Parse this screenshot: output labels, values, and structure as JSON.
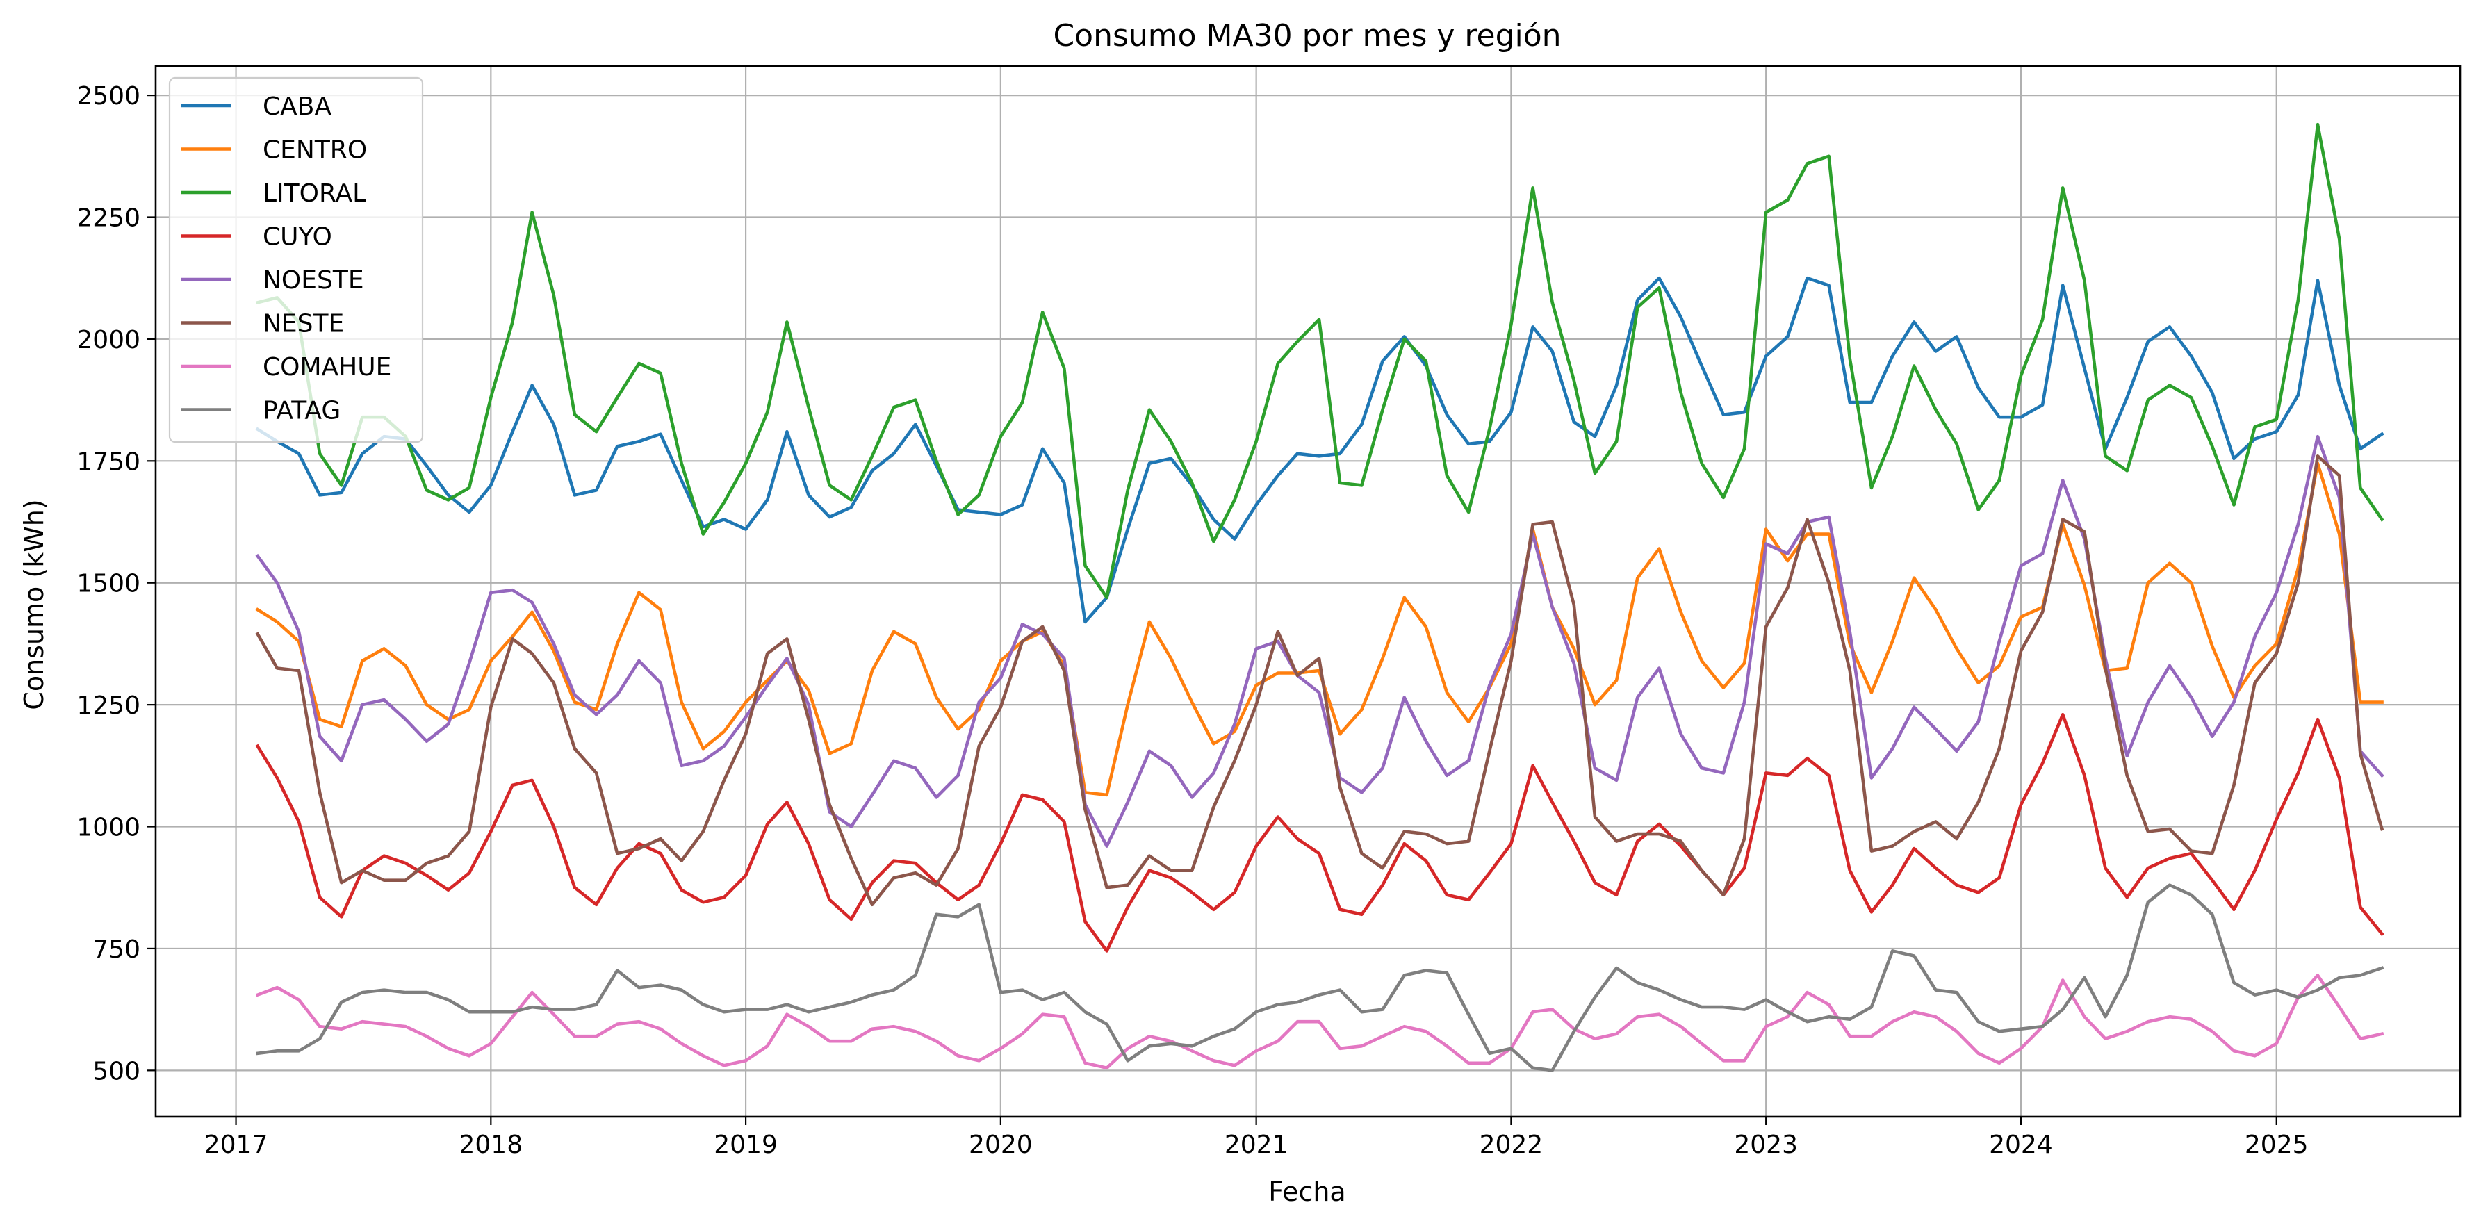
{
  "chart_data": {
    "type": "line",
    "title": "Consumo MA30 por mes y región",
    "xlabel": "Fecha",
    "ylabel": "Consumo (kWh)",
    "x_start": "2017-02",
    "x_end": "2025-06",
    "x_ticks": [
      "2017",
      "2018",
      "2019",
      "2020",
      "2021",
      "2022",
      "2023",
      "2024",
      "2025"
    ],
    "y_ticks": [
      500,
      750,
      1000,
      1250,
      1500,
      1750,
      2000,
      2250,
      2500
    ],
    "ylim": [
      405,
      2560
    ],
    "xlim": [
      "2016-09-08",
      "2025-09-21"
    ],
    "grid": true,
    "legend_position": "top-left",
    "x": [
      "2017-02",
      "2017-03",
      "2017-04",
      "2017-05",
      "2017-06",
      "2017-07",
      "2017-08",
      "2017-09",
      "2017-10",
      "2017-11",
      "2017-12",
      "2018-01",
      "2018-02",
      "2018-03",
      "2018-04",
      "2018-05",
      "2018-06",
      "2018-07",
      "2018-08",
      "2018-09",
      "2018-10",
      "2018-11",
      "2018-12",
      "2019-01",
      "2019-02",
      "2019-03",
      "2019-04",
      "2019-05",
      "2019-06",
      "2019-07",
      "2019-08",
      "2019-09",
      "2019-10",
      "2019-11",
      "2019-12",
      "2020-01",
      "2020-02",
      "2020-03",
      "2020-04",
      "2020-05",
      "2020-06",
      "2020-07",
      "2020-08",
      "2020-09",
      "2020-10",
      "2020-11",
      "2020-12",
      "2021-01",
      "2021-02",
      "2021-03",
      "2021-04",
      "2021-05",
      "2021-06",
      "2021-07",
      "2021-08",
      "2021-09",
      "2021-10",
      "2021-11",
      "2021-12",
      "2022-01",
      "2022-02",
      "2022-03",
      "2022-04",
      "2022-05",
      "2022-06",
      "2022-07",
      "2022-08",
      "2022-09",
      "2022-10",
      "2022-11",
      "2022-12",
      "2023-01",
      "2023-02",
      "2023-03",
      "2023-04",
      "2023-05",
      "2023-06",
      "2023-07",
      "2023-08",
      "2023-09",
      "2023-10",
      "2023-11",
      "2023-12",
      "2024-01",
      "2024-02",
      "2024-03",
      "2024-04",
      "2024-05",
      "2024-06",
      "2024-07",
      "2024-08",
      "2024-09",
      "2024-10",
      "2024-11",
      "2024-12",
      "2025-01",
      "2025-02",
      "2025-03",
      "2025-04",
      "2025-05",
      "2025-06"
    ],
    "series": [
      {
        "name": "CABA",
        "color": "#1f77b4",
        "values": [
          1815,
          1790,
          1765,
          1680,
          1685,
          1765,
          1800,
          1795,
          1740,
          1680,
          1645,
          1700,
          1810,
          1905,
          1825,
          1680,
          1690,
          1780,
          1790,
          1805,
          1710,
          1615,
          1630,
          1610,
          1670,
          1810,
          1680,
          1635,
          1655,
          1730,
          1765,
          1825,
          1740,
          1650,
          1645,
          1640,
          1660,
          1775,
          1705,
          1420,
          1470,
          1610,
          1745,
          1755,
          1700,
          1630,
          1590,
          1660,
          1720,
          1765,
          1760,
          1765,
          1825,
          1955,
          2005,
          1945,
          1845,
          1785,
          1790,
          1850,
          2025,
          1975,
          1830,
          1800,
          1905,
          2080,
          2125,
          2045,
          1945,
          1845,
          1850,
          1965,
          2005,
          2125,
          2110,
          1870,
          1870,
          1965,
          2035,
          1975,
          2005,
          1900,
          1840,
          1840,
          1865,
          2110,
          1940,
          1775,
          1880,
          1995,
          2025,
          1965,
          1890,
          1755,
          1795,
          1810,
          1885,
          2120,
          1905,
          1775,
          1805
        ]
      },
      {
        "name": "CENTRO",
        "color": "#ff7f0e",
        "values": [
          1445,
          1420,
          1380,
          1220,
          1205,
          1340,
          1365,
          1330,
          1250,
          1220,
          1240,
          1340,
          1390,
          1440,
          1360,
          1255,
          1240,
          1375,
          1480,
          1445,
          1255,
          1160,
          1195,
          1255,
          1300,
          1340,
          1280,
          1150,
          1170,
          1320,
          1400,
          1375,
          1265,
          1200,
          1240,
          1340,
          1380,
          1400,
          1330,
          1070,
          1065,
          1250,
          1420,
          1345,
          1255,
          1170,
          1195,
          1290,
          1315,
          1315,
          1320,
          1190,
          1240,
          1345,
          1470,
          1410,
          1275,
          1215,
          1285,
          1375,
          1610,
          1450,
          1365,
          1250,
          1300,
          1510,
          1570,
          1440,
          1340,
          1285,
          1335,
          1610,
          1545,
          1600,
          1600,
          1375,
          1275,
          1380,
          1510,
          1445,
          1365,
          1295,
          1330,
          1430,
          1450,
          1620,
          1495,
          1320,
          1325,
          1500,
          1540,
          1500,
          1370,
          1265,
          1330,
          1375,
          1530,
          1745,
          1600,
          1255,
          1255
        ]
      },
      {
        "name": "LITORAL",
        "color": "#2ca02c",
        "values": [
          2075,
          2085,
          2035,
          1765,
          1700,
          1840,
          1840,
          1800,
          1690,
          1670,
          1695,
          1880,
          2035,
          2260,
          2090,
          1845,
          1810,
          1880,
          1950,
          1930,
          1745,
          1600,
          1665,
          1745,
          1850,
          2035,
          1860,
          1700,
          1670,
          1760,
          1860,
          1875,
          1750,
          1640,
          1680,
          1800,
          1870,
          2055,
          1940,
          1535,
          1470,
          1690,
          1855,
          1790,
          1705,
          1585,
          1670,
          1790,
          1950,
          1995,
          2040,
          1705,
          1700,
          1855,
          2000,
          1955,
          1720,
          1645,
          1815,
          2030,
          2310,
          2075,
          1915,
          1725,
          1790,
          2065,
          2105,
          1890,
          1745,
          1675,
          1775,
          2260,
          2285,
          2360,
          2375,
          1960,
          1695,
          1800,
          1945,
          1855,
          1785,
          1650,
          1710,
          1925,
          2040,
          2310,
          2120,
          1760,
          1730,
          1875,
          1905,
          1880,
          1780,
          1660,
          1820,
          1835,
          2080,
          2440,
          2205,
          1695,
          1630
        ]
      },
      {
        "name": "CUYO",
        "color": "#d62728",
        "values": [
          1165,
          1100,
          1010,
          855,
          815,
          910,
          940,
          925,
          900,
          870,
          905,
          990,
          1085,
          1095,
          1000,
          875,
          840,
          915,
          965,
          945,
          870,
          845,
          855,
          900,
          1005,
          1050,
          965,
          850,
          810,
          885,
          930,
          925,
          885,
          850,
          880,
          965,
          1065,
          1055,
          1010,
          805,
          745,
          835,
          910,
          895,
          865,
          830,
          865,
          960,
          1020,
          975,
          945,
          830,
          820,
          880,
          965,
          930,
          860,
          850,
          905,
          965,
          1125,
          1050,
          970,
          885,
          860,
          970,
          1005,
          960,
          910,
          860,
          915,
          1110,
          1105,
          1140,
          1105,
          910,
          825,
          880,
          955,
          915,
          880,
          865,
          895,
          1045,
          1130,
          1230,
          1105,
          915,
          855,
          915,
          935,
          945,
          890,
          830,
          910,
          1015,
          1110,
          1220,
          1100,
          835,
          780
        ]
      },
      {
        "name": "NOESTE",
        "color": "#9467bd",
        "values": [
          1555,
          1500,
          1400,
          1185,
          1135,
          1250,
          1260,
          1220,
          1175,
          1210,
          1335,
          1480,
          1485,
          1460,
          1375,
          1270,
          1230,
          1270,
          1340,
          1295,
          1125,
          1135,
          1165,
          1225,
          1290,
          1345,
          1250,
          1030,
          1000,
          1065,
          1135,
          1120,
          1060,
          1105,
          1255,
          1305,
          1415,
          1395,
          1345,
          1045,
          960,
          1050,
          1155,
          1125,
          1060,
          1110,
          1210,
          1365,
          1380,
          1310,
          1275,
          1100,
          1070,
          1120,
          1265,
          1175,
          1105,
          1135,
          1290,
          1395,
          1600,
          1450,
          1335,
          1120,
          1095,
          1265,
          1325,
          1190,
          1120,
          1110,
          1255,
          1580,
          1560,
          1625,
          1635,
          1400,
          1100,
          1160,
          1245,
          1200,
          1155,
          1215,
          1380,
          1535,
          1560,
          1710,
          1590,
          1345,
          1145,
          1255,
          1330,
          1265,
          1185,
          1255,
          1390,
          1480,
          1620,
          1800,
          1675,
          1155,
          1105
        ]
      },
      {
        "name": "NESTE",
        "color": "#8c564b",
        "values": [
          1395,
          1325,
          1320,
          1070,
          885,
          910,
          890,
          890,
          925,
          940,
          990,
          1245,
          1385,
          1355,
          1295,
          1160,
          1110,
          945,
          955,
          975,
          930,
          990,
          1095,
          1190,
          1355,
          1385,
          1220,
          1045,
          935,
          840,
          895,
          905,
          880,
          955,
          1165,
          1245,
          1380,
          1410,
          1320,
          1035,
          875,
          880,
          940,
          910,
          910,
          1040,
          1135,
          1250,
          1400,
          1310,
          1345,
          1080,
          945,
          915,
          990,
          985,
          965,
          970,
          1155,
          1340,
          1620,
          1625,
          1455,
          1020,
          970,
          985,
          985,
          970,
          910,
          860,
          975,
          1410,
          1490,
          1630,
          1500,
          1320,
          950,
          960,
          990,
          1010,
          975,
          1050,
          1160,
          1360,
          1440,
          1630,
          1605,
          1325,
          1105,
          990,
          995,
          950,
          945,
          1085,
          1295,
          1355,
          1500,
          1760,
          1720,
          1150,
          995
        ]
      },
      {
        "name": "COMAHUE",
        "color": "#e377c2",
        "values": [
          655,
          670,
          645,
          590,
          585,
          600,
          595,
          590,
          570,
          545,
          530,
          555,
          610,
          660,
          615,
          570,
          570,
          595,
          600,
          585,
          555,
          530,
          510,
          520,
          550,
          615,
          590,
          560,
          560,
          585,
          590,
          580,
          560,
          530,
          520,
          545,
          575,
          615,
          610,
          515,
          505,
          545,
          570,
          560,
          540,
          520,
          510,
          540,
          560,
          600,
          600,
          545,
          550,
          570,
          590,
          580,
          550,
          515,
          515,
          545,
          620,
          625,
          585,
          565,
          575,
          610,
          615,
          590,
          555,
          520,
          520,
          590,
          610,
          660,
          635,
          570,
          570,
          600,
          620,
          610,
          580,
          535,
          515,
          545,
          590,
          685,
          610,
          565,
          580,
          600,
          610,
          605,
          580,
          540,
          530,
          555,
          650,
          695,
          630,
          565,
          575
        ]
      },
      {
        "name": "PATAG",
        "color": "#7f7f7f",
        "values": [
          535,
          540,
          540,
          565,
          640,
          660,
          665,
          660,
          660,
          645,
          620,
          620,
          620,
          630,
          625,
          625,
          635,
          705,
          670,
          675,
          665,
          635,
          620,
          625,
          625,
          635,
          620,
          630,
          640,
          655,
          665,
          695,
          820,
          815,
          840,
          660,
          665,
          645,
          660,
          620,
          595,
          520,
          550,
          555,
          550,
          570,
          585,
          620,
          635,
          640,
          655,
          665,
          620,
          625,
          695,
          705,
          700,
          615,
          535,
          545,
          505,
          500,
          580,
          650,
          710,
          680,
          665,
          645,
          630,
          630,
          625,
          645,
          620,
          600,
          610,
          605,
          630,
          745,
          735,
          665,
          660,
          600,
          580,
          585,
          590,
          625,
          690,
          610,
          695,
          845,
          880,
          860,
          820,
          680,
          655,
          665,
          650,
          665,
          690,
          695,
          710
        ]
      }
    ]
  }
}
